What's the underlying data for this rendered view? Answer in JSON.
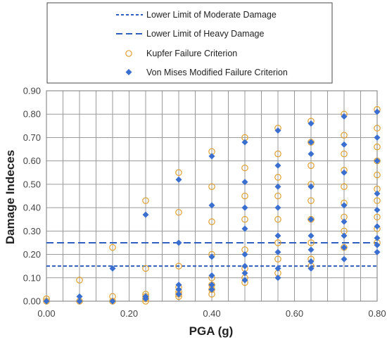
{
  "chart_data": {
    "type": "scatter",
    "xlabel": "PGA (g)",
    "ylabel": "Damage Indeces",
    "xlim": [
      0,
      0.8
    ],
    "ylim": [
      0,
      0.9
    ],
    "x_ticks": [
      "0.00",
      "0.20",
      "0.40",
      "0.60",
      "0.80"
    ],
    "y_ticks": [
      "0.00",
      "0.10",
      "0.20",
      "0.30",
      "0.40",
      "0.50",
      "0.60",
      "0.70",
      "0.80",
      "0.90"
    ],
    "grid": true,
    "legend_position": "top",
    "thresholds": [
      {
        "name": "Lower Limit of Moderate Damage",
        "value": 0.15,
        "color": "#2f5fbf",
        "dash": "short"
      },
      {
        "name": "Lower Limit of Heavy Damage",
        "value": 0.25,
        "color": "#2f5fbf",
        "dash": "long"
      }
    ],
    "series": [
      {
        "name": "Kupfer Failure Criterion",
        "marker": "open-circle",
        "color": "#e0a030",
        "points": [
          [
            0.0,
            0.01
          ],
          [
            0.0,
            0.0
          ],
          [
            0.08,
            0.09
          ],
          [
            0.08,
            0.0
          ],
          [
            0.16,
            0.23
          ],
          [
            0.16,
            0.02
          ],
          [
            0.16,
            0.0
          ],
          [
            0.24,
            0.43
          ],
          [
            0.24,
            0.14
          ],
          [
            0.24,
            0.03
          ],
          [
            0.24,
            0.02
          ],
          [
            0.24,
            0.01
          ],
          [
            0.24,
            0.0
          ],
          [
            0.32,
            0.55
          ],
          [
            0.32,
            0.38
          ],
          [
            0.32,
            0.15
          ],
          [
            0.32,
            0.06
          ],
          [
            0.32,
            0.04
          ],
          [
            0.32,
            0.03
          ],
          [
            0.32,
            0.02
          ],
          [
            0.4,
            0.64
          ],
          [
            0.4,
            0.49
          ],
          [
            0.4,
            0.34
          ],
          [
            0.4,
            0.2
          ],
          [
            0.4,
            0.1
          ],
          [
            0.4,
            0.07
          ],
          [
            0.4,
            0.05
          ],
          [
            0.4,
            0.03
          ],
          [
            0.48,
            0.7
          ],
          [
            0.48,
            0.57
          ],
          [
            0.48,
            0.45
          ],
          [
            0.48,
            0.35
          ],
          [
            0.48,
            0.22
          ],
          [
            0.48,
            0.14
          ],
          [
            0.48,
            0.1
          ],
          [
            0.48,
            0.08
          ],
          [
            0.56,
            0.74
          ],
          [
            0.56,
            0.63
          ],
          [
            0.56,
            0.53
          ],
          [
            0.56,
            0.45
          ],
          [
            0.56,
            0.35
          ],
          [
            0.56,
            0.25
          ],
          [
            0.56,
            0.18
          ],
          [
            0.56,
            0.12
          ],
          [
            0.64,
            0.77
          ],
          [
            0.64,
            0.68
          ],
          [
            0.64,
            0.58
          ],
          [
            0.64,
            0.5
          ],
          [
            0.64,
            0.43
          ],
          [
            0.64,
            0.35
          ],
          [
            0.64,
            0.25
          ],
          [
            0.64,
            0.18
          ],
          [
            0.64,
            0.15
          ],
          [
            0.72,
            0.8
          ],
          [
            0.72,
            0.71
          ],
          [
            0.72,
            0.63
          ],
          [
            0.72,
            0.56
          ],
          [
            0.72,
            0.49
          ],
          [
            0.72,
            0.42
          ],
          [
            0.72,
            0.36
          ],
          [
            0.72,
            0.3
          ],
          [
            0.72,
            0.23
          ],
          [
            0.8,
            0.82
          ],
          [
            0.8,
            0.74
          ],
          [
            0.8,
            0.66
          ],
          [
            0.8,
            0.6
          ],
          [
            0.8,
            0.54
          ],
          [
            0.8,
            0.48
          ],
          [
            0.8,
            0.43
          ],
          [
            0.8,
            0.36
          ],
          [
            0.8,
            0.31
          ],
          [
            0.8,
            0.25
          ]
        ]
      },
      {
        "name": "Von Mises Modified Failure Criterion",
        "marker": "filled-diamond",
        "color": "#3a6fd0",
        "points": [
          [
            0.0,
            0.0
          ],
          [
            0.08,
            0.02
          ],
          [
            0.08,
            0.0
          ],
          [
            0.16,
            0.14
          ],
          [
            0.16,
            0.0
          ],
          [
            0.24,
            0.37
          ],
          [
            0.24,
            0.02
          ],
          [
            0.24,
            0.01
          ],
          [
            0.32,
            0.52
          ],
          [
            0.32,
            0.25
          ],
          [
            0.32,
            0.07
          ],
          [
            0.32,
            0.05
          ],
          [
            0.32,
            0.03
          ],
          [
            0.4,
            0.62
          ],
          [
            0.4,
            0.41
          ],
          [
            0.4,
            0.19
          ],
          [
            0.4,
            0.11
          ],
          [
            0.4,
            0.07
          ],
          [
            0.4,
            0.05
          ],
          [
            0.48,
            0.68
          ],
          [
            0.48,
            0.51
          ],
          [
            0.48,
            0.4
          ],
          [
            0.48,
            0.31
          ],
          [
            0.48,
            0.2
          ],
          [
            0.48,
            0.15
          ],
          [
            0.48,
            0.12
          ],
          [
            0.48,
            0.09
          ],
          [
            0.56,
            0.73
          ],
          [
            0.56,
            0.58
          ],
          [
            0.56,
            0.49
          ],
          [
            0.56,
            0.4
          ],
          [
            0.56,
            0.28
          ],
          [
            0.56,
            0.21
          ],
          [
            0.56,
            0.14
          ],
          [
            0.56,
            0.1
          ],
          [
            0.64,
            0.76
          ],
          [
            0.64,
            0.68
          ],
          [
            0.64,
            0.63
          ],
          [
            0.64,
            0.49
          ],
          [
            0.64,
            0.35
          ],
          [
            0.64,
            0.28
          ],
          [
            0.64,
            0.22
          ],
          [
            0.64,
            0.17
          ],
          [
            0.64,
            0.14
          ],
          [
            0.72,
            0.79
          ],
          [
            0.72,
            0.67
          ],
          [
            0.72,
            0.55
          ],
          [
            0.72,
            0.41
          ],
          [
            0.72,
            0.34
          ],
          [
            0.72,
            0.28
          ],
          [
            0.72,
            0.23
          ],
          [
            0.72,
            0.18
          ],
          [
            0.8,
            0.81
          ],
          [
            0.8,
            0.7
          ],
          [
            0.8,
            0.6
          ],
          [
            0.8,
            0.46
          ],
          [
            0.8,
            0.39
          ],
          [
            0.8,
            0.32
          ],
          [
            0.8,
            0.27
          ],
          [
            0.8,
            0.24
          ],
          [
            0.8,
            0.21
          ]
        ]
      }
    ]
  }
}
